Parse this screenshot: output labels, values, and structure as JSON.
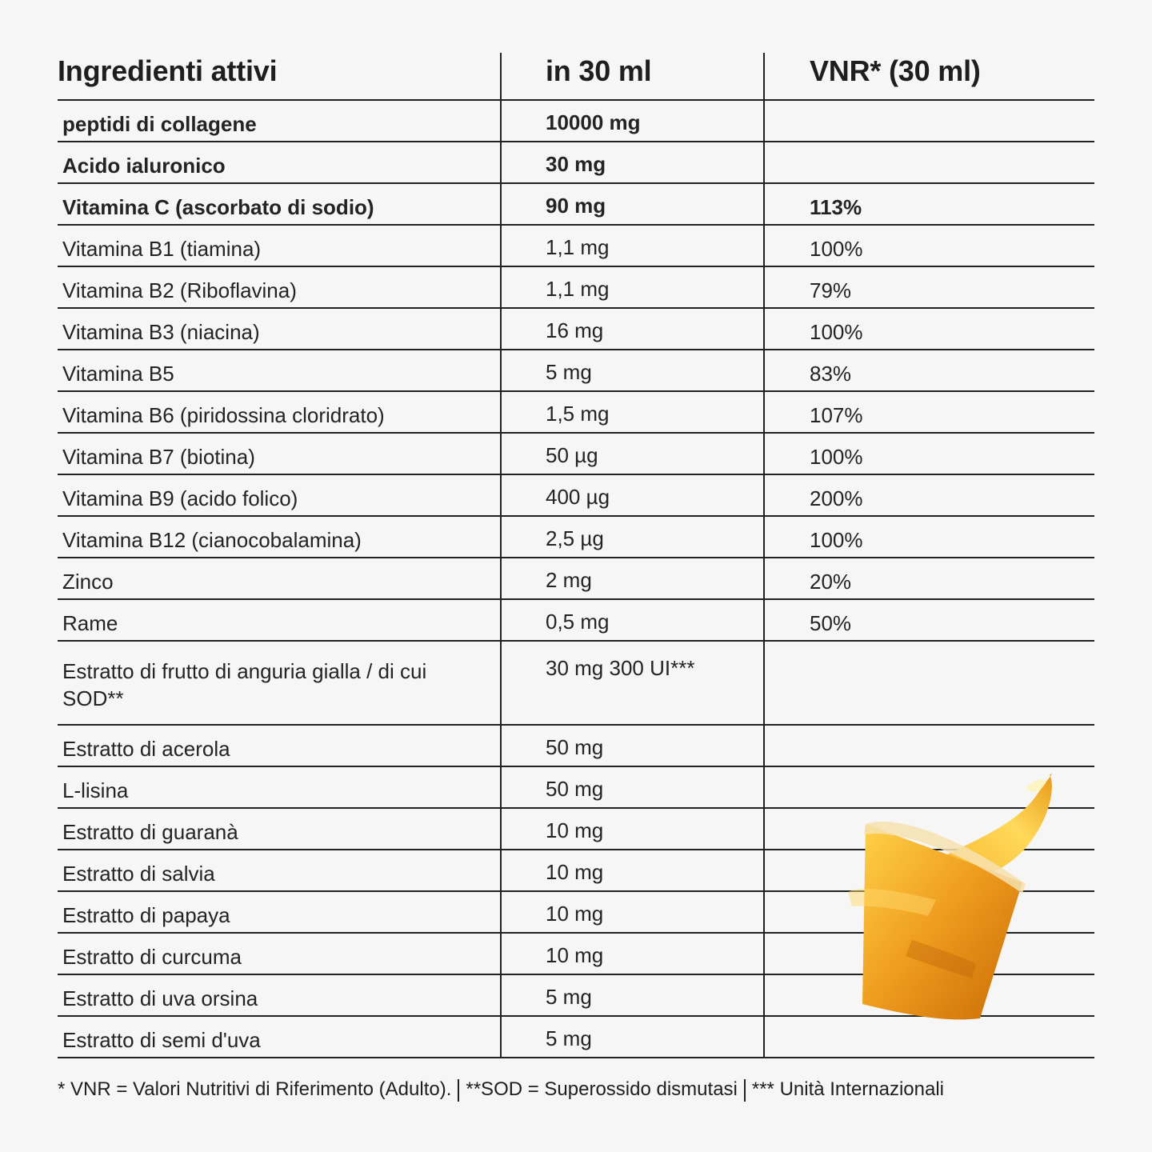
{
  "table": {
    "headers": [
      "Ingredienti attivi",
      "in 30 ml",
      "VNR* (30 ml)"
    ],
    "rows": [
      {
        "name": "peptidi di collagene",
        "amount": "10000 mg",
        "vnr": "",
        "bold": true
      },
      {
        "name": "Acido ialuronico",
        "amount": "30 mg",
        "vnr": "",
        "bold": true
      },
      {
        "name": "Vitamina C (ascorbato di sodio)",
        "amount": "90 mg",
        "vnr": "113%",
        "bold": true
      },
      {
        "name": "Vitamina B1 (tiamina)",
        "amount": "1,1 mg",
        "vnr": "100%"
      },
      {
        "name": "Vitamina B2 (Riboflavina)",
        "amount": "1,1 mg",
        "vnr": "79%"
      },
      {
        "name": "Vitamina B3 (niacina)",
        "amount": "16 mg",
        "vnr": "100%"
      },
      {
        "name": "Vitamina B5",
        "amount": "5 mg",
        "vnr": "83%"
      },
      {
        "name": "Vitamina B6 (piridossina cloridrato)",
        "amount": "1,5 mg",
        "vnr": "107%"
      },
      {
        "name": "Vitamina B7 (biotina)",
        "amount": "50 µg",
        "vnr": "100%"
      },
      {
        "name": "Vitamina B9 (acido folico)",
        "amount": "400 µg",
        "vnr": "200%"
      },
      {
        "name": "Vitamina B12 (cianocobalamina)",
        "amount": "2,5 µg",
        "vnr": "100%"
      },
      {
        "name": "Zinco",
        "amount": "2 mg",
        "vnr": "20%"
      },
      {
        "name": "Rame",
        "amount": "0,5 mg",
        "vnr": "50%"
      },
      {
        "name": "Estratto di frutto di anguria gialla / di cui SOD**",
        "amount": "30 mg 300 UI***",
        "vnr": "",
        "tall": true
      },
      {
        "name": "Estratto di acerola",
        "amount": "50 mg",
        "vnr": ""
      },
      {
        "name": "L-lisina",
        "amount": "50 mg",
        "vnr": ""
      },
      {
        "name": "Estratto di guaranà",
        "amount": "10 mg",
        "vnr": ""
      },
      {
        "name": "Estratto di salvia",
        "amount": "10 mg",
        "vnr": ""
      },
      {
        "name": "Estratto di papaya",
        "amount": "10 mg",
        "vnr": ""
      },
      {
        "name": "Estratto di curcuma",
        "amount": "10 mg",
        "vnr": ""
      },
      {
        "name": "Estratto di uva orsina",
        "amount": "5 mg",
        "vnr": ""
      },
      {
        "name": "Estratto di semi d'uva",
        "amount": "5 mg",
        "vnr": ""
      }
    ]
  },
  "footnotes": [
    "* VNR = Valori Nutritivi di Riferimento (Adulto).",
    "**SOD = Superossido dismutasi",
    "*** Unità Internazionali"
  ]
}
